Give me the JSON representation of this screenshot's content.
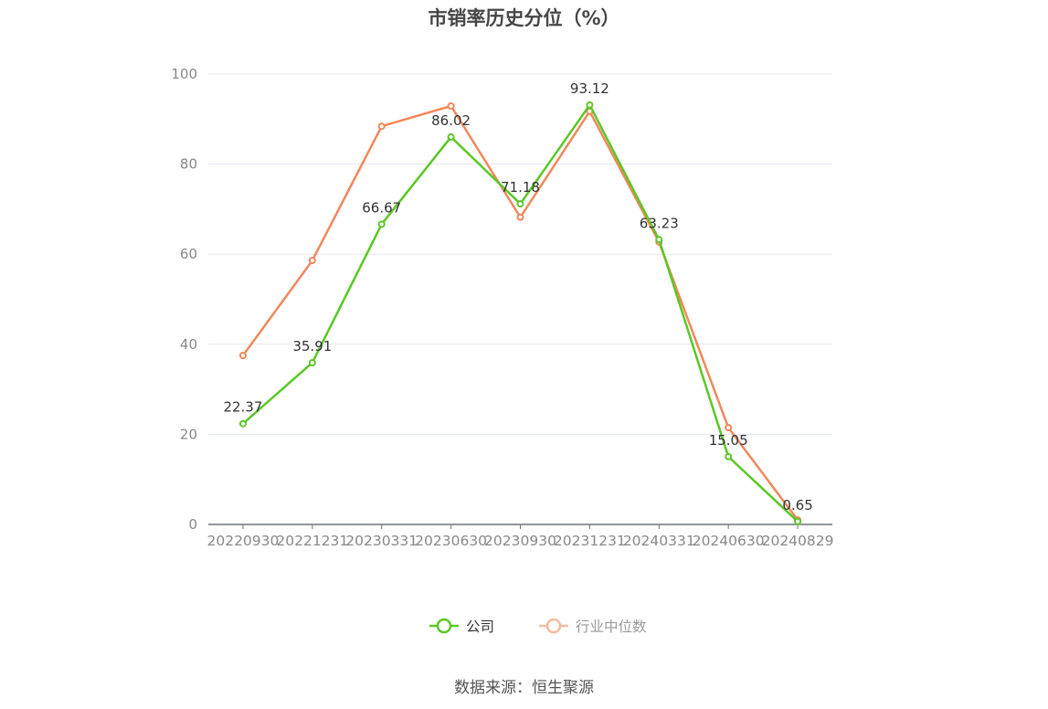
{
  "title": "市销率历史分位（%）",
  "source": "数据来源：恒生聚源",
  "colors": {
    "company": "#5bc726",
    "industry": "#f2875a",
    "industry_legend": "#f8b9a0",
    "grid": "#e3e7ef",
    "axis": "#6e7079",
    "label": "#333333",
    "tick": "#888888"
  },
  "legend": [
    {
      "name": "公司",
      "color": "#5bc726"
    },
    {
      "name": "行业中位数",
      "color": "#f8b9a0"
    }
  ],
  "chart_data": {
    "type": "line",
    "title": "市销率历史分位（%）",
    "xlabel": "",
    "ylabel": "",
    "ylim": [
      0,
      100
    ],
    "yticks": [
      0,
      20,
      40,
      60,
      80,
      100
    ],
    "grid": true,
    "legend_position": "bottom",
    "categories": [
      "20220930",
      "20221231",
      "20230331",
      "20230630",
      "20230930",
      "20231231",
      "20240331",
      "20240630",
      "20240829"
    ],
    "series": [
      {
        "name": "公司",
        "values": [
          22.37,
          35.91,
          66.67,
          86.02,
          71.18,
          93.12,
          63.23,
          15.05,
          0.65
        ],
        "labeled": true
      },
      {
        "name": "行业中位数",
        "values": [
          37.5,
          58.6,
          88.4,
          92.9,
          68.2,
          91.7,
          62.7,
          21.5,
          1.0
        ],
        "labeled": false
      }
    ]
  }
}
